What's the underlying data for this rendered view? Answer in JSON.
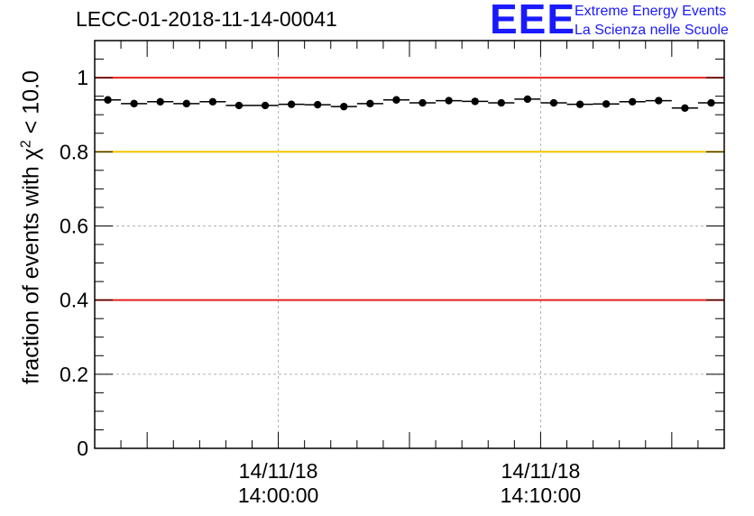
{
  "title": "LECC-01-2018-11-14-00041",
  "logo": {
    "mark": "EEE",
    "line1": "Extreme Energy Events",
    "line2": "La Scienza nelle Scuole"
  },
  "colors": {
    "threshold_red": "#e8201e",
    "threshold_yellow": "#f5c400",
    "logo_blue": "#1a1aff",
    "grid": "#b0b0b0"
  },
  "chart_data": {
    "type": "scatter",
    "title": "LECC-01-2018-11-14-00041",
    "xlabel": "",
    "ylabel_prefix": "fraction of events with χ",
    "ylabel_sup": "2",
    "ylabel_suffix": " < 10.0",
    "ylim": [
      0,
      1.1
    ],
    "yticks": [
      0,
      0.2,
      0.4,
      0.6,
      0.8,
      1
    ],
    "ytick_labels": [
      "0",
      "0.2",
      "0.4",
      "0.6",
      "0.8",
      "1"
    ],
    "xlim": [
      "13:53:00",
      "14:17:00"
    ],
    "xtick_labels": [
      {
        "time": "14:00:00",
        "line1": "14/11/18",
        "line2": "14:00:00"
      },
      {
        "time": "14:10:00",
        "line1": "14/11/18",
        "line2": "14:10:00"
      }
    ],
    "grid": true,
    "reference_lines": [
      {
        "y": 1.0,
        "color": "red"
      },
      {
        "y": 0.8,
        "color": "yellow"
      },
      {
        "y": 0.4,
        "color": "red"
      }
    ],
    "bin_width_minutes": 1,
    "x": [
      "13:53:30",
      "13:54:30",
      "13:55:30",
      "13:56:30",
      "13:57:30",
      "13:58:30",
      "13:59:30",
      "14:00:30",
      "14:01:30",
      "14:02:30",
      "14:03:30",
      "14:04:30",
      "14:05:30",
      "14:06:30",
      "14:07:30",
      "14:08:30",
      "14:09:30",
      "14:10:30",
      "14:11:30",
      "14:12:30",
      "14:13:30",
      "14:14:30",
      "14:15:30",
      "14:16:30"
    ],
    "y": [
      0.94,
      0.93,
      0.935,
      0.93,
      0.935,
      0.925,
      0.925,
      0.928,
      0.927,
      0.922,
      0.93,
      0.94,
      0.932,
      0.938,
      0.936,
      0.932,
      0.942,
      0.932,
      0.928,
      0.929,
      0.935,
      0.938,
      0.918,
      0.932
    ]
  }
}
